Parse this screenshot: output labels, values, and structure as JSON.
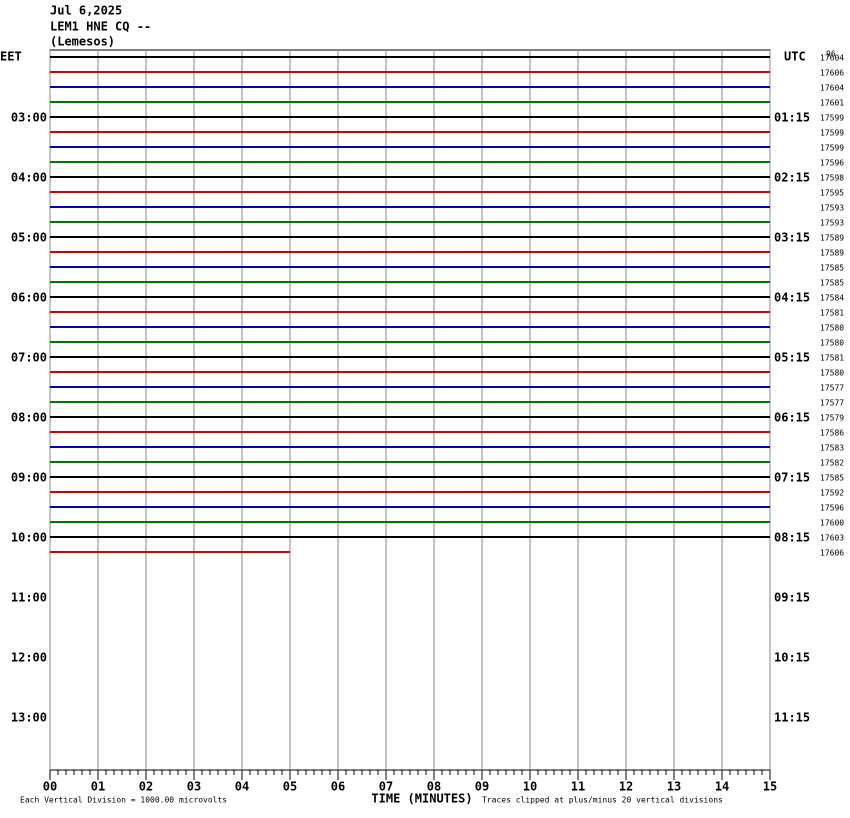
{
  "chart_data": {
    "type": "helicorder",
    "date": "Jul 6,2025",
    "station": "LEM1 HNE CQ --",
    "location": "(Lemesos)",
    "left_zone": "EET",
    "right_zone": "UTC",
    "corner_label": "96",
    "left_labels": [
      "03:00",
      "04:00",
      "05:00",
      "06:00",
      "07:00",
      "08:00",
      "09:00",
      "10:00",
      "11:00",
      "12:00",
      "13:00"
    ],
    "right_labels": [
      "01:15",
      "02:15",
      "03:15",
      "04:15",
      "05:15",
      "06:15",
      "07:15",
      "08:15",
      "09:15",
      "10:15",
      "11:15"
    ],
    "colors": [
      "#000000",
      "#d40000",
      "#0000b4",
      "#007800"
    ],
    "traces": [
      {
        "count": 17604,
        "x": [
          0,
          15
        ]
      },
      {
        "count": 17606,
        "x": [
          0,
          15
        ]
      },
      {
        "count": 17604,
        "x": [
          0,
          15
        ]
      },
      {
        "count": 17601,
        "x": [
          0,
          15
        ]
      },
      {
        "count": 17599,
        "x": [
          0,
          15
        ]
      },
      {
        "count": 17599,
        "x": [
          0,
          15
        ]
      },
      {
        "count": 17599,
        "x": [
          0,
          15
        ]
      },
      {
        "count": 17596,
        "x": [
          0,
          15
        ]
      },
      {
        "count": 17598,
        "x": [
          0,
          15
        ]
      },
      {
        "count": 17595,
        "x": [
          0,
          15
        ]
      },
      {
        "count": 17593,
        "x": [
          0,
          15
        ]
      },
      {
        "count": 17593,
        "x": [
          0,
          15
        ]
      },
      {
        "count": 17589,
        "x": [
          0,
          15
        ]
      },
      {
        "count": 17589,
        "x": [
          0,
          15
        ]
      },
      {
        "count": 17585,
        "x": [
          0,
          15
        ]
      },
      {
        "count": 17585,
        "x": [
          0,
          15
        ]
      },
      {
        "count": 17584,
        "x": [
          0,
          15
        ]
      },
      {
        "count": 17581,
        "x": [
          0,
          15
        ]
      },
      {
        "count": 17580,
        "x": [
          0,
          15
        ]
      },
      {
        "count": 17580,
        "x": [
          0,
          15
        ]
      },
      {
        "count": 17581,
        "x": [
          0,
          15
        ]
      },
      {
        "count": 17580,
        "x": [
          0,
          15
        ]
      },
      {
        "count": 17577,
        "x": [
          0,
          15
        ]
      },
      {
        "count": 17577,
        "x": [
          0,
          15
        ]
      },
      {
        "count": 17579,
        "x": [
          0,
          15
        ]
      },
      {
        "count": 17586,
        "x": [
          0,
          15
        ]
      },
      {
        "count": 17583,
        "x": [
          0,
          15
        ]
      },
      {
        "count": 17582,
        "x": [
          0,
          15
        ]
      },
      {
        "count": 17585,
        "x": [
          0,
          15
        ]
      },
      {
        "count": 17592,
        "x": [
          0,
          15
        ]
      },
      {
        "count": 17596,
        "x": [
          0,
          15
        ]
      },
      {
        "count": 17600,
        "x": [
          0,
          15
        ]
      },
      {
        "count": 17603,
        "x": [
          0,
          15
        ]
      },
      {
        "count": 17606,
        "x": [
          0,
          5
        ]
      }
    ],
    "xlim": [
      0,
      15
    ],
    "xticks": [
      {
        "value": 0,
        "label": "00"
      },
      {
        "value": 1,
        "label": "01"
      },
      {
        "value": 2,
        "label": "02"
      },
      {
        "value": 3,
        "label": "03"
      },
      {
        "value": 4,
        "label": "04"
      },
      {
        "value": 5,
        "label": "05"
      },
      {
        "value": 6,
        "label": "06"
      },
      {
        "value": 7,
        "label": "07"
      },
      {
        "value": 8,
        "label": "08"
      },
      {
        "value": 9,
        "label": "09"
      },
      {
        "value": 10,
        "label": "10"
      },
      {
        "value": 11,
        "label": "11"
      },
      {
        "value": 12,
        "label": "12"
      },
      {
        "value": 13,
        "label": "13"
      },
      {
        "value": 14,
        "label": "14"
      },
      {
        "value": 15,
        "label": "15"
      }
    ],
    "x_label": "TIME (MINUTES)",
    "scale_note": "Each Vertical Division = 1000.00 microvolts",
    "clip_note": "Traces clipped at plus/minus 20 vertical divisions"
  }
}
